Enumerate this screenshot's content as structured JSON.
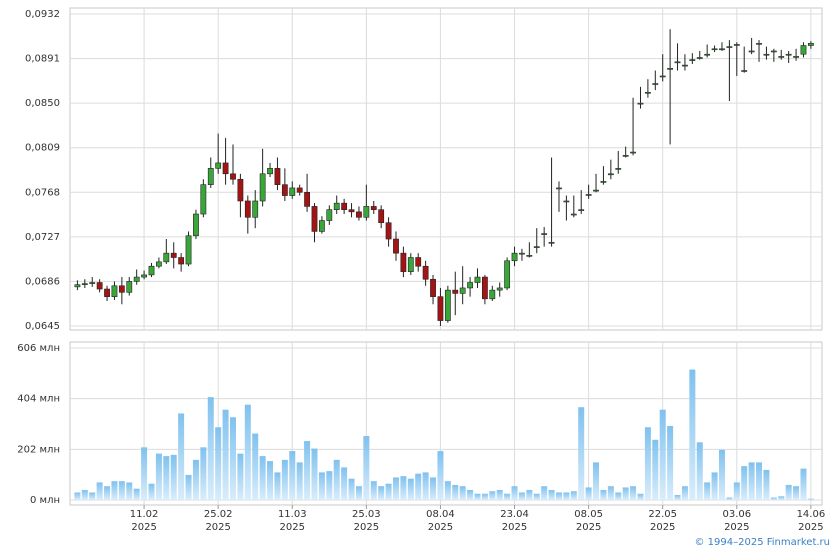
{
  "chart_data": {
    "type": "candlestick",
    "xlim": [
      -1,
      100.5
    ],
    "xticks": [
      {
        "value": 9,
        "label": "11.02",
        "sublabel": "2025"
      },
      {
        "value": 19,
        "label": "25.02",
        "sublabel": "2025"
      },
      {
        "value": 29,
        "label": "11.03",
        "sublabel": "2025"
      },
      {
        "value": 39,
        "label": "25.03",
        "sublabel": "2025"
      },
      {
        "value": 49,
        "label": "08.04",
        "sublabel": "2025"
      },
      {
        "value": 59,
        "label": "23.04",
        "sublabel": "2025"
      },
      {
        "value": 69,
        "label": "08.05",
        "sublabel": "2025"
      },
      {
        "value": 79,
        "label": "22.05",
        "sublabel": "2025"
      },
      {
        "value": 89,
        "label": "03.06",
        "sublabel": "2025"
      },
      {
        "value": 99,
        "label": "14.06",
        "sublabel": "2025"
      }
    ],
    "ylim": [
      0.0645,
      0.0932
    ],
    "yticks": [
      {
        "value": 0.0645,
        "label": "0,0645"
      },
      {
        "value": 0.0686,
        "label": "0,0686"
      },
      {
        "value": 0.0727,
        "label": "0,0727"
      },
      {
        "value": 0.0768,
        "label": "0,0768"
      },
      {
        "value": 0.0809,
        "label": "0,0809"
      },
      {
        "value": 0.085,
        "label": "0,0850"
      },
      {
        "value": 0.0891,
        "label": "0,0891"
      },
      {
        "value": 0.0932,
        "label": "0,0932"
      }
    ],
    "volume_ylim": [
      0,
      606
    ],
    "volume_yticks": [
      {
        "value": 0,
        "label": "0 млн"
      },
      {
        "value": 202,
        "label": "202 млн"
      },
      {
        "value": 404,
        "label": "404 млн"
      },
      {
        "value": 606,
        "label": "606 млн"
      }
    ],
    "up_color": "#3aa63a",
    "down_color": "#a31515",
    "volume_color": "#7fc1ee",
    "grid": true,
    "open": [
      0.0681,
      0.0683,
      0.0684,
      0.0685,
      0.0679,
      0.0672,
      0.0682,
      0.0676,
      0.0686,
      0.069,
      0.0692,
      0.07,
      0.0704,
      0.0712,
      0.0708,
      0.0702,
      0.0728,
      0.0748,
      0.0775,
      0.079,
      0.0795,
      0.0785,
      0.078,
      0.076,
      0.0745,
      0.076,
      0.0785,
      0.079,
      0.0775,
      0.0765,
      0.0772,
      0.0768,
      0.0755,
      0.0732,
      0.0742,
      0.0752,
      0.0758,
      0.0752,
      0.075,
      0.0745,
      0.0755,
      0.0752,
      0.074,
      0.0725,
      0.0712,
      0.0695,
      0.0708,
      0.07,
      0.0688,
      0.0672,
      0.065,
      0.0678,
      0.0675,
      0.068,
      0.0685,
      0.069,
      0.067,
      0.0678,
      0.068,
      0.0705,
      0.0712,
      0.071,
      0.0718,
      0.073,
      0.0722,
      0.0772,
      0.076,
      0.0748,
      0.0752,
      0.0766,
      0.077,
      0.0778,
      0.0785,
      0.079,
      0.0802,
      0.0805,
      0.085,
      0.086,
      0.0868,
      0.0875,
      0.0882,
      0.0888,
      0.0885,
      0.089,
      0.0892,
      0.0895,
      0.09,
      0.09,
      0.0902,
      0.0904,
      0.088,
      0.0898,
      0.0905,
      0.0895,
      0.0898,
      0.0893,
      0.0895,
      0.0893,
      0.0895,
      0.0903
    ],
    "high": [
      0.0687,
      0.0688,
      0.069,
      0.0688,
      0.0682,
      0.0686,
      0.069,
      0.069,
      0.0697,
      0.0696,
      0.0703,
      0.0708,
      0.0725,
      0.0722,
      0.0712,
      0.0732,
      0.0752,
      0.078,
      0.08,
      0.0822,
      0.0818,
      0.0812,
      0.0785,
      0.0765,
      0.077,
      0.0808,
      0.0795,
      0.08,
      0.079,
      0.0778,
      0.0775,
      0.0785,
      0.0758,
      0.0746,
      0.0756,
      0.0765,
      0.0762,
      0.0758,
      0.0755,
      0.0775,
      0.076,
      0.0756,
      0.0745,
      0.0732,
      0.0718,
      0.0712,
      0.0712,
      0.0705,
      0.0692,
      0.068,
      0.0682,
      0.0695,
      0.07,
      0.069,
      0.0698,
      0.0692,
      0.0682,
      0.0685,
      0.0708,
      0.0718,
      0.0716,
      0.0722,
      0.0735,
      0.0736,
      0.08,
      0.0778,
      0.0765,
      0.0765,
      0.077,
      0.0775,
      0.0785,
      0.0792,
      0.0798,
      0.0806,
      0.081,
      0.0855,
      0.0865,
      0.0872,
      0.088,
      0.0895,
      0.0918,
      0.0905,
      0.0895,
      0.0896,
      0.0898,
      0.0904,
      0.0903,
      0.0906,
      0.0908,
      0.0906,
      0.0902,
      0.091,
      0.0908,
      0.0902,
      0.09,
      0.0899,
      0.0898,
      0.09,
      0.0906,
      0.0907
    ],
    "low": [
      0.0678,
      0.068,
      0.0681,
      0.0676,
      0.0668,
      0.0669,
      0.0665,
      0.0673,
      0.0683,
      0.0688,
      0.069,
      0.0698,
      0.0702,
      0.0698,
      0.0695,
      0.07,
      0.0725,
      0.0745,
      0.0772,
      0.0785,
      0.0775,
      0.0775,
      0.0745,
      0.073,
      0.0735,
      0.0755,
      0.0782,
      0.077,
      0.076,
      0.0762,
      0.0765,
      0.075,
      0.0722,
      0.073,
      0.0738,
      0.0748,
      0.0748,
      0.0745,
      0.0742,
      0.0742,
      0.0748,
      0.0735,
      0.0718,
      0.0705,
      0.069,
      0.0692,
      0.0695,
      0.0682,
      0.0665,
      0.0645,
      0.0648,
      0.0655,
      0.0665,
      0.0672,
      0.068,
      0.0665,
      0.0668,
      0.0672,
      0.0678,
      0.07,
      0.0705,
      0.0708,
      0.0712,
      0.0718,
      0.0718,
      0.075,
      0.0742,
      0.0745,
      0.0748,
      0.0762,
      0.0768,
      0.0775,
      0.078,
      0.0785,
      0.08,
      0.0802,
      0.0845,
      0.0855,
      0.0862,
      0.087,
      0.0812,
      0.088,
      0.088,
      0.0886,
      0.089,
      0.0892,
      0.0897,
      0.0898,
      0.0852,
      0.0875,
      0.0878,
      0.0895,
      0.0888,
      0.089,
      0.0888,
      0.089,
      0.0887,
      0.0889,
      0.0892,
      0.09
    ],
    "close": [
      0.0683,
      0.0684,
      0.0685,
      0.0679,
      0.0672,
      0.0682,
      0.0676,
      0.0686,
      0.069,
      0.0692,
      0.07,
      0.0704,
      0.0712,
      0.0708,
      0.0702,
      0.0728,
      0.0748,
      0.0775,
      0.079,
      0.0795,
      0.0785,
      0.078,
      0.076,
      0.0745,
      0.076,
      0.0785,
      0.079,
      0.0775,
      0.0765,
      0.0772,
      0.0768,
      0.0755,
      0.0732,
      0.0742,
      0.0752,
      0.0758,
      0.0752,
      0.075,
      0.0745,
      0.0755,
      0.0752,
      0.074,
      0.0725,
      0.0712,
      0.0695,
      0.0708,
      0.07,
      0.0688,
      0.0672,
      0.065,
      0.0678,
      0.0675,
      0.068,
      0.0685,
      0.069,
      0.067,
      0.0678,
      0.068,
      0.0705,
      0.0712,
      0.0712,
      0.071,
      0.0718,
      0.073,
      0.0722,
      0.0772,
      0.076,
      0.0748,
      0.0752,
      0.0766,
      0.077,
      0.0778,
      0.0785,
      0.079,
      0.0802,
      0.0805,
      0.085,
      0.086,
      0.0868,
      0.0875,
      0.0882,
      0.0888,
      0.0885,
      0.089,
      0.0892,
      0.0895,
      0.09,
      0.09,
      0.0902,
      0.0904,
      0.088,
      0.0898,
      0.0905,
      0.0895,
      0.0898,
      0.0893,
      0.0895,
      0.0893,
      0.0903,
      0.0905
    ],
    "volume": [
      30,
      40,
      30,
      70,
      55,
      75,
      75,
      70,
      45,
      210,
      65,
      185,
      175,
      180,
      345,
      100,
      160,
      210,
      410,
      290,
      360,
      330,
      185,
      380,
      265,
      175,
      155,
      110,
      160,
      195,
      150,
      235,
      205,
      110,
      115,
      160,
      130,
      85,
      55,
      255,
      75,
      55,
      65,
      90,
      95,
      85,
      105,
      110,
      90,
      195,
      75,
      60,
      55,
      40,
      25,
      25,
      35,
      40,
      25,
      55,
      30,
      40,
      25,
      55,
      40,
      30,
      30,
      35,
      370,
      50,
      150,
      40,
      55,
      30,
      50,
      55,
      25,
      290,
      240,
      360,
      295,
      20,
      55,
      520,
      230,
      70,
      110,
      200,
      10,
      70,
      135,
      150,
      150,
      120,
      10,
      15,
      60,
      55,
      125,
      5
    ],
    "footer": "© 1994–2025 Finmarket.ru"
  }
}
